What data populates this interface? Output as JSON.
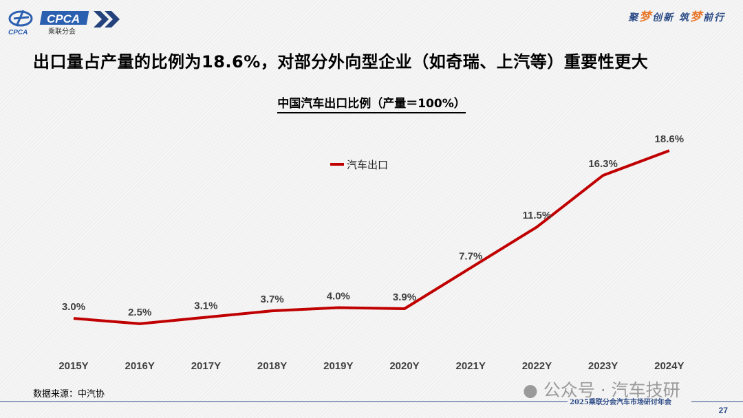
{
  "header": {
    "logo_text": "CPCA",
    "logo_subtext": "乘联分会",
    "logo_emblem_text": "CPCA",
    "slogan_parts": [
      "聚",
      "梦",
      "创新 筑",
      "梦",
      "前行"
    ]
  },
  "headline": "出口量占产量的比例为18.6%，对部分外向型企业（如奇瑞、上汽等）重要性更大",
  "chart_data": {
    "type": "line",
    "title": "中国汽车出口比例（产量＝100%）",
    "categories": [
      "2015Y",
      "2016Y",
      "2017Y",
      "2018Y",
      "2019Y",
      "2020Y",
      "2021Y",
      "2022Y",
      "2023Y",
      "2024Y"
    ],
    "series": [
      {
        "name": "汽车出口",
        "values": [
          3.0,
          2.5,
          3.1,
          3.7,
          4.0,
          3.9,
          7.7,
          11.5,
          16.3,
          18.6
        ],
        "labels": [
          "3.0%",
          "2.5%",
          "3.1%",
          "3.7%",
          "4.0%",
          "3.9%",
          "7.7%",
          "11.5%",
          "16.3%",
          "18.6%"
        ],
        "color": "#c00000"
      }
    ],
    "legend": "top-center",
    "grid": false,
    "y_axis_visible": false
  },
  "source": "数据来源：中汽协",
  "watermark": "公众号 · 汽车技研",
  "footer": "2025乘联分会汽车市场研讨年会",
  "page_number": "27",
  "colors": {
    "brand": "#2b4a86",
    "accent": "#e8772a",
    "line": "#c00000"
  }
}
